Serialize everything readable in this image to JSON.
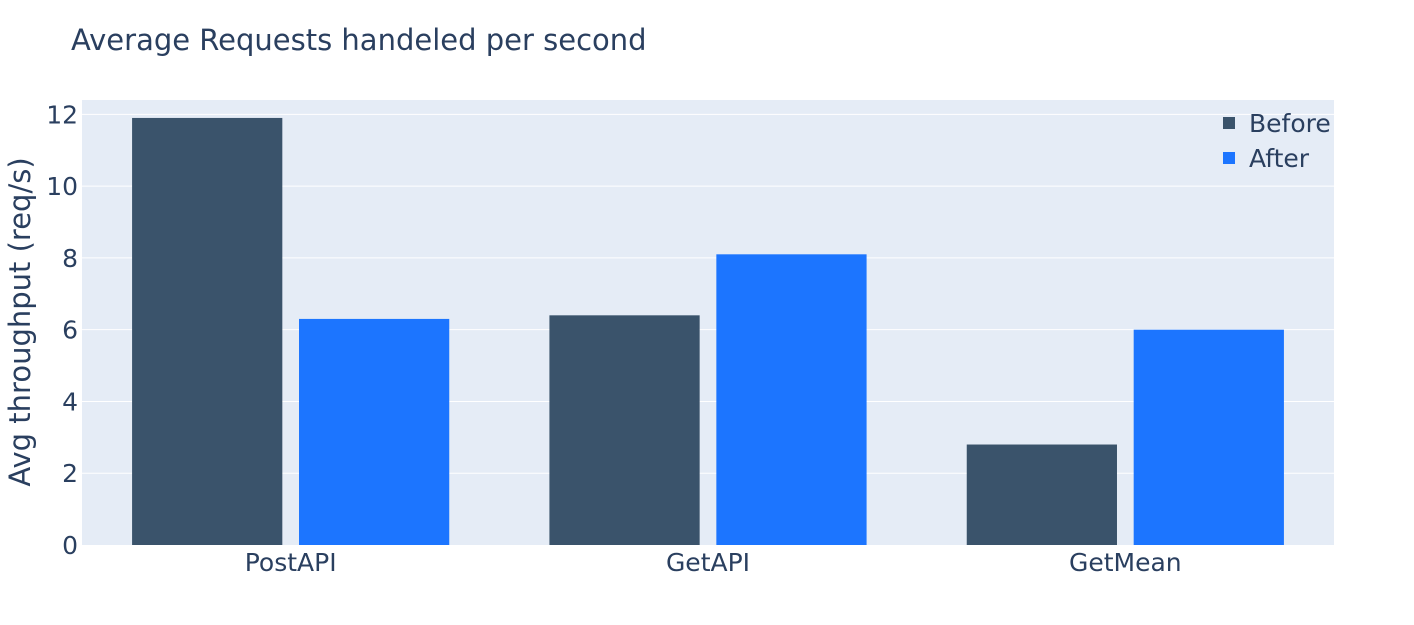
{
  "chart_data": {
    "type": "bar",
    "title": "Average Requests handeled per second",
    "xlabel": "",
    "ylabel": "Avg throughput (req/s)",
    "categories": [
      "PostAPI",
      "GetAPI",
      "GetMean"
    ],
    "series": [
      {
        "name": "Before",
        "values": [
          11.9,
          6.4,
          2.8
        ],
        "color": "#3a536b"
      },
      {
        "name": "After",
        "values": [
          6.3,
          8.1,
          6.0
        ],
        "color": "#1c75ff"
      }
    ],
    "ylim": [
      0,
      12.4
    ],
    "yticks": [
      0,
      2,
      4,
      6,
      8,
      10,
      12
    ],
    "grid": true,
    "legend_position": "top-right",
    "plot_background": "#e5ecf6"
  }
}
